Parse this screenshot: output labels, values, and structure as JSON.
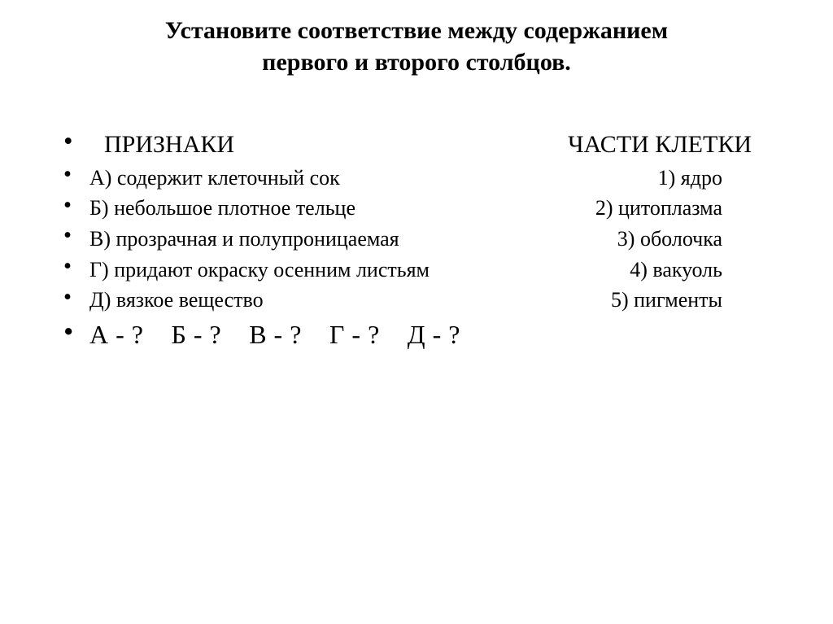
{
  "title_line1": "Установите соответствие между содержанием",
  "title_line2": "первого и второго столбцов.",
  "headers": {
    "left": "ПРИЗНАКИ",
    "right": "ЧАСТИ КЛЕТКИ"
  },
  "pairs": [
    {
      "left": "А) содержит клеточный сок",
      "right": "1) ядро"
    },
    {
      "left": "Б) небольшое плотное тельце",
      "right": "2) цитоплазма"
    },
    {
      "left": "В) прозрачная и полупроницаемая",
      "right": "3) оболочка"
    },
    {
      "left": "Г) придают окраску осенним листьям",
      "right": "4) вакуоль"
    },
    {
      "left": "Д) вязкое вещество",
      "right": "5) пигменты"
    }
  ],
  "answers": [
    "А - ?",
    "Б - ?",
    "В - ?",
    "Г - ?",
    "Д - ?"
  ]
}
